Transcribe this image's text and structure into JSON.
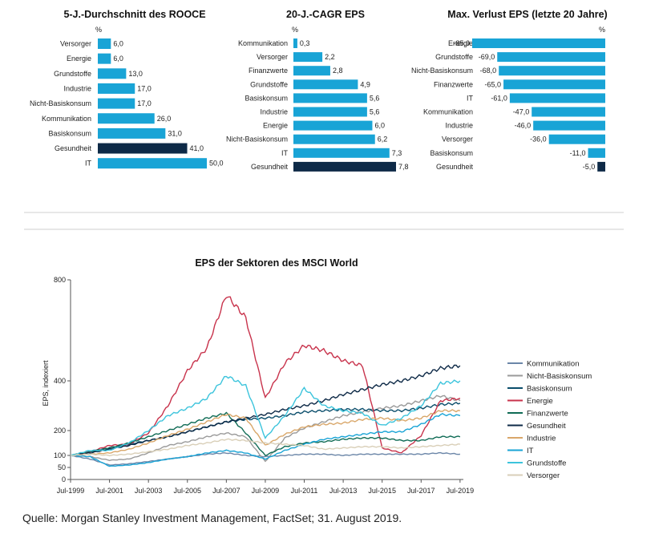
{
  "colors": {
    "bar": "#19a4d6",
    "highlight": "#0e2a47",
    "axis": "#555555"
  },
  "chart_data": [
    {
      "type": "bar",
      "title": "5-J.-Durchschnitt des ROOCE",
      "unit": "%",
      "categories": [
        "Versorger",
        "Energie",
        "Grundstoffe",
        "Industrie",
        "Nicht-Basiskonsum",
        "Kommunikation",
        "Basiskonsum",
        "Gesundheit",
        "IT"
      ],
      "values": [
        6.0,
        6.0,
        13.0,
        17.0,
        17.0,
        26.0,
        31.0,
        41.0,
        50.0
      ],
      "value_labels": [
        "6,0",
        "6,0",
        "13,0",
        "17,0",
        "17,0",
        "26,0",
        "31,0",
        "41,0",
        "50,0"
      ],
      "highlight": "Gesundheit",
      "xlim": [
        0,
        50
      ]
    },
    {
      "type": "bar",
      "title": "20-J.-CAGR EPS",
      "unit": "%",
      "categories": [
        "Kommunikation",
        "Versorger",
        "Finanzwerte",
        "Grundstoffe",
        "Basiskonsum",
        "Industrie",
        "Energie",
        "Nicht-Basiskonsum",
        "IT",
        "Gesundheit"
      ],
      "values": [
        0.3,
        2.2,
        2.8,
        4.9,
        5.6,
        5.6,
        6.0,
        6.2,
        7.3,
        7.8
      ],
      "value_labels": [
        "0,3",
        "2,2",
        "2,8",
        "4,9",
        "5,6",
        "5,6",
        "6,0",
        "6,2",
        "7,3",
        "7,8"
      ],
      "highlight": "Gesundheit",
      "xlim": [
        0,
        7.8
      ]
    },
    {
      "type": "bar",
      "title": "Max. Verlust EPS (letzte 20 Jahre)",
      "unit": "%",
      "categories": [
        "Energie",
        "Grundstoffe",
        "Nicht-Basiskonsum",
        "Finanzwerte",
        "IT",
        "Kommunikation",
        "Industrie",
        "Versorger",
        "Basiskonsum",
        "Gesundheit"
      ],
      "values": [
        -85.0,
        -69.0,
        -68.0,
        -65.0,
        -61.0,
        -47.0,
        -46.0,
        -36.0,
        -11.0,
        -5.0
      ],
      "value_labels": [
        "-85,0",
        "-69,0",
        "-68,0",
        "-65,0",
        "-61,0",
        "-47,0",
        "-46,0",
        "-36,0",
        "-11,0",
        "-5,0"
      ],
      "highlight": "Gesundheit",
      "xlim": [
        -85,
        0
      ]
    },
    {
      "type": "line",
      "title": "EPS der Sektoren des MSCI World",
      "ylabel": "EPS, indexiert",
      "xlabel": "",
      "ylim": [
        0,
        800
      ],
      "yticks": [
        0,
        50,
        100,
        200,
        400,
        800
      ],
      "xlim": [
        1999.5,
        2019.67
      ],
      "xticks": [
        {
          "v": 1999.5,
          "label": "Jul-1999"
        },
        {
          "v": 2001.5,
          "label": "Jul-2001"
        },
        {
          "v": 2003.5,
          "label": "Jul-2003"
        },
        {
          "v": 2005.5,
          "label": "Jul-2005"
        },
        {
          "v": 2007.5,
          "label": "Jul-2007"
        },
        {
          "v": 2009.5,
          "label": "Jul-2009"
        },
        {
          "v": 2011.5,
          "label": "Jul-2011"
        },
        {
          "v": 2013.5,
          "label": "Jul-2013"
        },
        {
          "v": 2015.5,
          "label": "Jul-2015"
        },
        {
          "v": 2017.5,
          "label": "Jul-2017"
        },
        {
          "v": 2019.5,
          "label": "Jul-2019"
        }
      ],
      "x": [
        1999.5,
        2000.5,
        2001.5,
        2002.5,
        2003.5,
        2004.5,
        2005.5,
        2006.5,
        2007.5,
        2008.5,
        2009.5,
        2010.5,
        2011.5,
        2012.5,
        2013.5,
        2014.5,
        2015.5,
        2016.5,
        2017.5,
        2018.5,
        2019.5
      ],
      "series": [
        {
          "name": "Kommunikation",
          "color": "#6b86a8",
          "values": [
            100,
            85,
            60,
            65,
            75,
            85,
            95,
            105,
            110,
            100,
            95,
            100,
            105,
            105,
            100,
            105,
            105,
            105,
            105,
            110,
            105
          ]
        },
        {
          "name": "Nicht-Basiskonsum",
          "color": "#9a9a9a",
          "values": [
            100,
            95,
            80,
            85,
            110,
            140,
            155,
            175,
            190,
            175,
            75,
            170,
            210,
            235,
            260,
            275,
            290,
            300,
            320,
            340,
            320
          ]
        },
        {
          "name": "Basiskonsum",
          "color": "#0a4d6b",
          "values": [
            100,
            115,
            130,
            145,
            160,
            175,
            195,
            215,
            235,
            245,
            250,
            260,
            275,
            280,
            285,
            285,
            280,
            280,
            290,
            305,
            310
          ]
        },
        {
          "name": "Energie",
          "color": "#c8334c",
          "values": [
            100,
            115,
            140,
            145,
            190,
            300,
            440,
            530,
            740,
            650,
            330,
            470,
            540,
            520,
            480,
            460,
            130,
            110,
            180,
            320,
            330
          ]
        },
        {
          "name": "Finanzwerte",
          "color": "#0f6b55",
          "values": [
            100,
            115,
            130,
            150,
            175,
            200,
            225,
            250,
            270,
            190,
            100,
            135,
            150,
            155,
            165,
            170,
            170,
            160,
            160,
            175,
            175
          ]
        },
        {
          "name": "Gesundheit",
          "color": "#0e2a47",
          "values": [
            100,
            110,
            125,
            140,
            160,
            175,
            195,
            215,
            235,
            250,
            265,
            285,
            300,
            320,
            345,
            365,
            385,
            400,
            420,
            450,
            460
          ]
        },
        {
          "name": "Industrie",
          "color": "#d9a76a",
          "values": [
            100,
            105,
            110,
            125,
            150,
            180,
            205,
            235,
            265,
            250,
            140,
            185,
            215,
            225,
            230,
            245,
            250,
            240,
            250,
            280,
            280
          ]
        },
        {
          "name": "IT",
          "color": "#19a4d6",
          "values": [
            100,
            95,
            55,
            60,
            70,
            85,
            95,
            110,
            120,
            110,
            85,
            120,
            145,
            165,
            175,
            185,
            195,
            195,
            225,
            265,
            260
          ]
        },
        {
          "name": "Grundstoffe",
          "color": "#3cc4dc",
          "values": [
            100,
            120,
            120,
            150,
            200,
            260,
            290,
            330,
            420,
            380,
            170,
            260,
            370,
            300,
            280,
            270,
            220,
            250,
            300,
            390,
            400
          ]
        },
        {
          "name": "Versorger",
          "color": "#d9cfb8",
          "values": [
            100,
            105,
            100,
            105,
            115,
            125,
            140,
            150,
            165,
            160,
            150,
            145,
            140,
            125,
            130,
            135,
            135,
            130,
            135,
            140,
            145
          ]
        }
      ]
    }
  ],
  "source": "Quelle: Morgan Stanley Investment Management, FactSet; 31. August 2019."
}
